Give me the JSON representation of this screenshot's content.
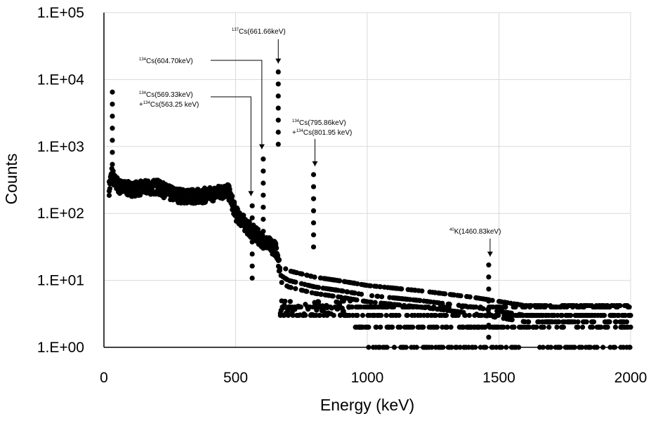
{
  "chart_data": {
    "type": "scatter",
    "title": "",
    "xlabel": "Energy (keV)",
    "ylabel": "Counts",
    "xlim": [
      0,
      2000
    ],
    "ylim": [
      1,
      100000
    ],
    "y_scale": "log",
    "grid": true,
    "marker_color": "#000000",
    "x_ticks": [
      0,
      500,
      1000,
      1500,
      2000
    ],
    "x_tick_labels": [
      "0",
      "500",
      "1000",
      "1500",
      "2000"
    ],
    "y_ticks": [
      1,
      10,
      100,
      1000,
      10000,
      100000
    ],
    "y_tick_labels": [
      "1.E+00",
      "1.E+01",
      "1.E+02",
      "1.E+03",
      "1.E+04",
      "1.E+05"
    ],
    "peaks": [
      {
        "x": 32,
        "y": 6500
      },
      {
        "x": 563,
        "y": 130
      },
      {
        "x": 605,
        "y": 650
      },
      {
        "x": 662,
        "y": 13000
      },
      {
        "x": 796,
        "y": 380
      },
      {
        "x": 1461,
        "y": 17
      }
    ],
    "spectrum": [
      {
        "x": 20,
        "y": 240
      },
      {
        "x": 30,
        "y": 400
      },
      {
        "x": 40,
        "y": 300
      },
      {
        "x": 60,
        "y": 250
      },
      {
        "x": 100,
        "y": 230
      },
      {
        "x": 150,
        "y": 240
      },
      {
        "x": 200,
        "y": 250
      },
      {
        "x": 250,
        "y": 200
      },
      {
        "x": 300,
        "y": 180
      },
      {
        "x": 350,
        "y": 180
      },
      {
        "x": 400,
        "y": 190
      },
      {
        "x": 450,
        "y": 210
      },
      {
        "x": 470,
        "y": 220
      },
      {
        "x": 480,
        "y": 180
      },
      {
        "x": 500,
        "y": 100
      },
      {
        "x": 550,
        "y": 60
      },
      {
        "x": 600,
        "y": 40
      },
      {
        "x": 650,
        "y": 30
      },
      {
        "x": 660,
        "y": 25
      },
      {
        "x": 670,
        "y": 12
      },
      {
        "x": 700,
        "y": 10
      },
      {
        "x": 800,
        "y": 8
      },
      {
        "x": 900,
        "y": 7
      },
      {
        "x": 1000,
        "y": 6
      },
      {
        "x": 1200,
        "y": 5
      },
      {
        "x": 1400,
        "y": 4
      },
      {
        "x": 1600,
        "y": 3
      },
      {
        "x": 1800,
        "y": 3
      },
      {
        "x": 2000,
        "y": 3
      }
    ],
    "annotations": [
      {
        "iso": "137",
        "text": "Cs(661.66keV)",
        "x": 662,
        "y": 13000
      },
      {
        "iso": "134",
        "text": "Cs(604.70keV)",
        "x": 605,
        "y": 650
      },
      {
        "iso": "134",
        "text": "Cs(569.33keV)",
        "iso2": "134",
        "text2": "Cs(563.25 keV)",
        "line2_prefix": "+",
        "x": 569,
        "y": 130
      },
      {
        "iso": "134",
        "text": "Cs(795.86keV)",
        "iso2": "134",
        "text2": "Cs(801.95 keV)",
        "line2_prefix": "+",
        "x": 796,
        "y": 380
      },
      {
        "iso": "40",
        "text": "K(1460.83keV)",
        "x": 1461,
        "y": 17
      }
    ]
  }
}
